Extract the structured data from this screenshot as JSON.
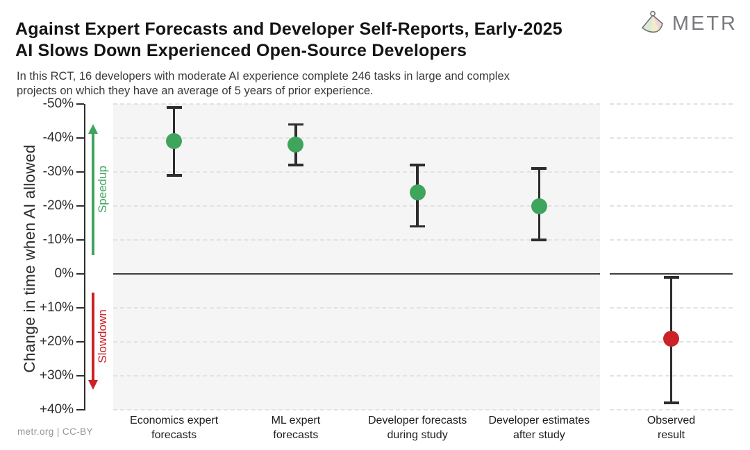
{
  "header": {
    "title_line1": "Against Expert Forecasts and Developer Self-Reports, Early-2025",
    "title_line2": "AI Slows Down Experienced Open-Source Developers",
    "subtitle_line1": "In this RCT, 16 developers with moderate AI experience complete 246 tasks in large and complex",
    "subtitle_line2": "projects on which they have an average of 5 years of prior experience.",
    "logo_text": "METR"
  },
  "footer": {
    "credit": "metr.org  |  CC-BY"
  },
  "chart_data": {
    "type": "scatter",
    "subtype": "point-estimates-with-error-bars",
    "title": "Against Expert Forecasts and Developer Self-Reports, Early-2025 AI Slows Down Experienced Open-Source Developers",
    "xlabel": "",
    "ylabel": "Change in time when AI allowed",
    "ylim": [
      -50,
      40
    ],
    "y_axis_inverted": true,
    "grid": "dashed horizontal lines at every 10%, solid dark line at 0%",
    "legend_position": "none",
    "y_ticks": [
      -50,
      -40,
      -30,
      -20,
      -10,
      0,
      10,
      20,
      30,
      40
    ],
    "y_tick_labels": [
      "-50%",
      "-40%",
      "-30%",
      "-20%",
      "-10%",
      "0%",
      "+10%",
      "+20%",
      "+30%",
      "+40%"
    ],
    "annotations": {
      "up_arrow_label": "Speedup",
      "down_arrow_label": "Slowdown"
    },
    "series": [
      {
        "panel": "main",
        "category": "Economics expert forecasts",
        "label_lines": [
          "Economics expert",
          "forecasts"
        ],
        "value_pct": -39,
        "ci": [
          -49,
          -29
        ],
        "color": "#3fa45c"
      },
      {
        "panel": "main",
        "category": "ML expert forecasts",
        "label_lines": [
          "ML expert",
          "forecasts"
        ],
        "value_pct": -38,
        "ci": [
          -44,
          -32
        ],
        "color": "#3fa45c"
      },
      {
        "panel": "main",
        "category": "Developer forecasts during study",
        "label_lines": [
          "Developer forecasts",
          "during study"
        ],
        "value_pct": -24,
        "ci": [
          -32,
          -14
        ],
        "color": "#3fa45c"
      },
      {
        "panel": "main",
        "category": "Developer estimates after study",
        "label_lines": [
          "Developer estimates",
          "after study"
        ],
        "value_pct": -20,
        "ci": [
          -31,
          -10
        ],
        "color": "#3fa45c"
      },
      {
        "panel": "observed",
        "category": "Observed result",
        "label_lines": [
          "Observed",
          "result"
        ],
        "value_pct": 19,
        "ci": [
          1,
          38
        ],
        "color": "#cb2127"
      }
    ],
    "colors": {
      "speedup_green": "#3fa45c",
      "slowdown_red": "#cb2127",
      "error_bar": "#2d2d2d",
      "zero_line": "#3d3d3d",
      "main_panel_bg": "#f5f5f5",
      "observed_panel_bg": "#ffffff",
      "gridline": "#e2e2e2",
      "axis": "#2d2d2d"
    }
  }
}
